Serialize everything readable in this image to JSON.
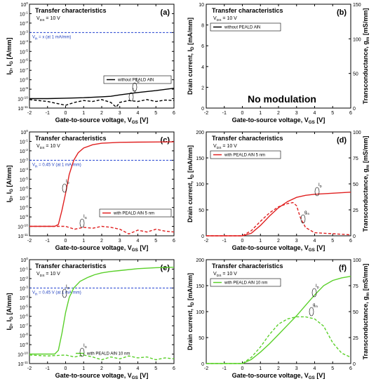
{
  "chart_data": [
    {
      "id": "a",
      "type": "line",
      "letter": "(a)",
      "title": "Transfer characteristics",
      "subtitle": "V_DS = 10 V",
      "xlabel": "Gate-to-source voltage, V_GS [V]",
      "ylabel": "I_D, I_G [A/mm]",
      "yscale": "log",
      "xlim": [
        -2,
        6
      ],
      "ylim_exp": [
        -11,
        0
      ],
      "xticks": [
        "-2",
        "-1",
        "0",
        "1",
        "2",
        "3",
        "4",
        "5",
        "6"
      ],
      "yticks": [
        "10^-11",
        "10^-10",
        "10^-9",
        "10^-8",
        "10^-7",
        "10^-6",
        "10^-5",
        "10^-4",
        "10^-3",
        "10^-2",
        "10^-1",
        "10^0"
      ],
      "vth_label": "V_th = x (at 1 mA/mm)",
      "vth_level_exp": -3,
      "legend": "without   PEALD AlN",
      "color": "#000000",
      "series": [
        {
          "style": "solid",
          "x": [
            -2,
            -1,
            0,
            1,
            2,
            2.5,
            3,
            4,
            5,
            6
          ],
          "y_exp": [
            -10,
            -10,
            -9.95,
            -9.9,
            -9.8,
            -9.75,
            -9.6,
            -9.35,
            -9.15,
            -8.9
          ]
        },
        {
          "style": "dashed",
          "x": [
            -2,
            -1,
            -0.5,
            0,
            0.5,
            1,
            1.5,
            2,
            2.5,
            2.8,
            3,
            3.5,
            4,
            4.5,
            5,
            5.5,
            6
          ],
          "y_exp": [
            -10.1,
            -10.3,
            -10.5,
            -10.7,
            -10.4,
            -10.2,
            -10.3,
            -10.1,
            -10.4,
            -10.9,
            -10.4,
            -10.2,
            -10.3,
            -10.1,
            -10.3,
            -10.15,
            -10.2
          ]
        }
      ],
      "annotations": [
        "I_D",
        "I_G"
      ]
    },
    {
      "id": "b",
      "type": "line",
      "letter": "(b)",
      "title": "Transfer characteristics",
      "subtitle": "V_DS = 10 V",
      "xlabel": "Gate-to-source voltage, V_GS [V]",
      "ylabel": "Drain current, I_D [mA/mm]",
      "y2label": "Transconductance, g_m [mS/mm]",
      "yscale": "linear",
      "xlim": [
        -2,
        6
      ],
      "ylim": [
        0,
        10
      ],
      "y2lim": [
        0,
        150
      ],
      "xticks": [
        "-2",
        "-1",
        "0",
        "1",
        "2",
        "3",
        "4",
        "5",
        "6"
      ],
      "yticks": [
        "0",
        "2",
        "4",
        "6",
        "8",
        "10"
      ],
      "y2ticks": [
        "0",
        "50",
        "100",
        "150"
      ],
      "legend": "without   PEALD AlN",
      "color": "#000000",
      "note": "No modulation",
      "series": []
    },
    {
      "id": "c",
      "type": "line",
      "letter": "(c)",
      "title": "Transfer characteristics",
      "subtitle": "V_DS = 10 V",
      "xlabel": "Gate-to-source voltage, V_GS [V]",
      "ylabel": "I_D, I_G [A/mm]",
      "yscale": "log",
      "xlim": [
        -2,
        6
      ],
      "ylim_exp": [
        -11,
        0
      ],
      "xticks": [
        "-2",
        "-1",
        "0",
        "1",
        "2",
        "3",
        "4",
        "5",
        "6"
      ],
      "yticks": [
        "10^-11",
        "10^-10",
        "10^-9",
        "10^-8",
        "10^-7",
        "10^-6",
        "10^-5",
        "10^-4",
        "10^-3",
        "10^-2",
        "10^-1",
        "10^0"
      ],
      "vth_label": "V_th = 0.45 V (at 1 mA/mm)",
      "vth_level_exp": -3,
      "legend": "with    PEALD AlN 5 nm",
      "color": "#e02020",
      "series": [
        {
          "style": "solid",
          "x": [
            -2,
            -1,
            -0.6,
            -0.4,
            -0.2,
            0,
            0.2,
            0.45,
            0.7,
            1,
            1.5,
            2,
            3,
            4,
            5,
            6
          ],
          "y_exp": [
            -10,
            -10,
            -10,
            -9.8,
            -8.3,
            -6.5,
            -4.5,
            -3,
            -2.2,
            -1.7,
            -1.35,
            -1.2,
            -1.1,
            -1.08,
            -1.06,
            -1.05
          ]
        },
        {
          "style": "dashed",
          "x": [
            -2,
            -1,
            0,
            0.5,
            1,
            1.5,
            2,
            2.5,
            3,
            3.5,
            4,
            4.5,
            5,
            5.5,
            6
          ],
          "y_exp": [
            -10,
            -10,
            -10,
            -10.3,
            -10.1,
            -10.2,
            -10.0,
            -10.1,
            -10.3,
            -10.8,
            -10.4,
            -10.6,
            -10.3,
            -10.5,
            -10.6
          ]
        }
      ],
      "annotations": [
        "I_D",
        "I_G"
      ]
    },
    {
      "id": "d",
      "type": "line",
      "letter": "(d)",
      "title": "Transfer characteristics",
      "subtitle": "V_DS = 10 V",
      "xlabel": "Gate-to-source voltage, V_GS [V]",
      "ylabel": "Drain current, I_D [mA/mm]",
      "y2label": "Transconductance, g_m [mS/mm]",
      "yscale": "linear",
      "xlim": [
        -2,
        6
      ],
      "ylim": [
        0,
        200
      ],
      "y2lim": [
        0,
        100
      ],
      "xticks": [
        "-2",
        "-1",
        "0",
        "1",
        "2",
        "3",
        "4",
        "5",
        "6"
      ],
      "yticks": [
        "0",
        "50",
        "100",
        "150",
        "200"
      ],
      "y2ticks": [
        "0",
        "25",
        "50",
        "75",
        "100"
      ],
      "legend": "with    PEALD AlN 5 nm",
      "color": "#e02020",
      "series": [
        {
          "style": "solid",
          "axis": "left",
          "x": [
            -2,
            0,
            0.5,
            1,
            1.5,
            2,
            2.5,
            3,
            3.5,
            4,
            5,
            6
          ],
          "y": [
            0,
            0,
            5,
            20,
            38,
            54,
            66,
            74,
            78,
            80,
            82,
            84
          ]
        },
        {
          "style": "dashed",
          "axis": "right",
          "x": [
            -2,
            0,
            0.5,
            1,
            1.5,
            2,
            2.5,
            2.8,
            3,
            3.2,
            3.5,
            4,
            4.5,
            5,
            5.5,
            6
          ],
          "y": [
            0,
            0,
            5,
            14,
            22,
            28,
            31,
            32,
            29,
            18,
            8,
            3,
            2.5,
            2,
            1.5,
            1
          ]
        }
      ],
      "annotations": [
        "I_D",
        "g_m"
      ]
    },
    {
      "id": "e",
      "type": "line",
      "letter": "(e)",
      "title": "Transfer characteristics",
      "subtitle": "V_DS = 10 V",
      "xlabel": "Gate-to-source voltage, V_GS [V]",
      "ylabel": "I_D, I_G [A/mm]",
      "yscale": "log",
      "xlim": [
        -2,
        6
      ],
      "ylim_exp": [
        -11,
        0
      ],
      "xticks": [
        "-2",
        "-1",
        "0",
        "1",
        "2",
        "3",
        "4",
        "5",
        "6"
      ],
      "yticks": [
        "10^-11",
        "10^-10",
        "10^-9",
        "10^-8",
        "10^-7",
        "10^-6",
        "10^-5",
        "10^-4",
        "10^-3",
        "10^-2",
        "10^-1",
        "10^0"
      ],
      "vth_label": "V_th = 0.45 V (at 1 mA/mm)",
      "vth_level_exp": -3,
      "legend": "with    PEALD AlN 10 nm",
      "color": "#5ad02a",
      "series": [
        {
          "style": "solid",
          "x": [
            -2,
            -1,
            -0.6,
            -0.4,
            -0.2,
            0,
            0.2,
            0.45,
            0.8,
            1.2,
            1.6,
            2,
            2.5,
            3,
            4,
            5,
            6
          ],
          "y_exp": [
            -10,
            -10,
            -10,
            -9.6,
            -7.8,
            -5.6,
            -4.0,
            -3,
            -2.3,
            -1.9,
            -1.6,
            -1.4,
            -1.25,
            -1.15,
            -0.95,
            -0.85,
            -0.8
          ]
        },
        {
          "style": "dashed",
          "x": [
            -2,
            -1,
            0,
            0.5,
            1,
            1.5,
            2,
            2.5,
            3,
            3.5,
            4,
            4.5,
            5,
            5.5,
            6
          ],
          "y_exp": [
            -10.1,
            -10.2,
            -10.1,
            -10.3,
            -10.1,
            -10.3,
            -10.6,
            -10.3,
            -10.5,
            -10.2,
            -10.4,
            -10.3,
            -10.6,
            -10.4,
            -10.5
          ]
        }
      ],
      "annotations": [
        "I_D",
        "I_G"
      ]
    },
    {
      "id": "f",
      "type": "line",
      "letter": "(f)",
      "title": "Transfer characteristics",
      "subtitle": "V_DS = 10 V",
      "xlabel": "Gate-to-source voltage, V_GS [V]",
      "ylabel": "Drain current, I_D [mA/mm]",
      "y2label": "Transconductance, g_m [mS/mm]",
      "yscale": "linear",
      "xlim": [
        -2,
        6
      ],
      "ylim": [
        0,
        200
      ],
      "y2lim": [
        0,
        100
      ],
      "xticks": [
        "-2",
        "-1",
        "0",
        "1",
        "2",
        "3",
        "4",
        "5",
        "6"
      ],
      "yticks": [
        "0",
        "50",
        "100",
        "150",
        "200"
      ],
      "y2ticks": [
        "0",
        "25",
        "50",
        "75",
        "100"
      ],
      "legend": "with    PEALD AlN 10 nm",
      "color": "#5ad02a",
      "series": [
        {
          "style": "solid",
          "axis": "left",
          "x": [
            -2,
            0,
            0.5,
            1,
            1.5,
            2,
            2.5,
            3,
            3.5,
            4,
            4.5,
            5,
            5.5,
            6
          ],
          "y": [
            0,
            0,
            8,
            22,
            38,
            56,
            74,
            92,
            112,
            132,
            150,
            160,
            165,
            168
          ]
        },
        {
          "style": "dashed",
          "axis": "right",
          "x": [
            -2,
            0,
            0.5,
            1,
            1.5,
            2,
            2.5,
            3,
            3.5,
            4,
            4.5,
            5,
            5.5,
            6
          ],
          "y": [
            0,
            0,
            6,
            16,
            28,
            38,
            43,
            45,
            45,
            43,
            36,
            20,
            10,
            6
          ]
        }
      ],
      "annotations": [
        "I_D",
        "g_m"
      ]
    }
  ]
}
